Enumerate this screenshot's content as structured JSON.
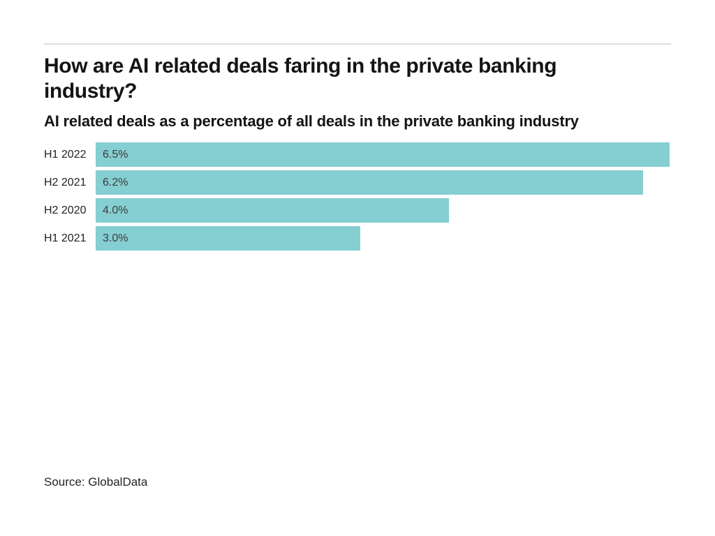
{
  "colors": {
    "page_background": "#ffffff",
    "divider": "#dfdfdf",
    "heading_text": "#141414",
    "category_text": "#232323",
    "value_text": "#3c3c3c",
    "bar_fill": "#85ced2"
  },
  "header": {
    "title_lines": [
      "How are AI related deals faring in the private banking",
      "industry?"
    ],
    "subtitle": "AI related deals as a percentage of all deals in the private banking industry"
  },
  "chart_data": {
    "type": "bar",
    "orientation": "horizontal",
    "title": "How are AI related deals faring in the private banking industry?",
    "subtitle": "AI related deals as a percentage of all deals in the private banking industry",
    "categories": [
      "H1 2022",
      "H2 2021",
      "H2 2020",
      "H1 2021"
    ],
    "values": [
      6.5,
      6.2,
      4.0,
      3.0
    ],
    "value_labels": [
      "6.5%",
      "6.2%",
      "4.0%",
      "3.0%"
    ],
    "xlim": [
      0,
      6.5
    ],
    "grid": false,
    "legend": false,
    "bar_color": "#85ced2",
    "value_label_position": "inside-left"
  },
  "footer": {
    "source": "Source: GlobalData"
  }
}
